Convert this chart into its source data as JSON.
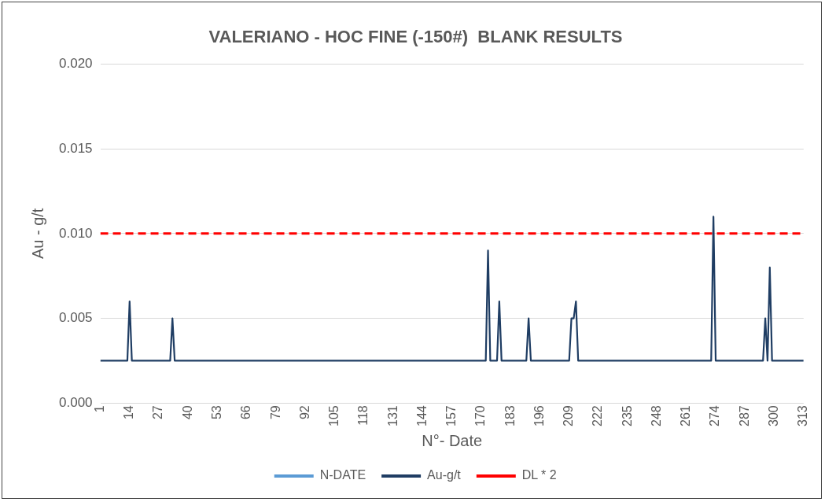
{
  "chart_data": {
    "type": "line",
    "title": "VALERIANO - HOC FINE (-150#)  BLANK RESULTS",
    "xlabel": "N°- Date",
    "ylabel": "Au - g/t",
    "xlim": [
      1,
      313
    ],
    "xticks": [
      1,
      14,
      27,
      40,
      53,
      66,
      79,
      92,
      105,
      118,
      131,
      144,
      157,
      170,
      183,
      196,
      209,
      222,
      235,
      248,
      261,
      274,
      287,
      300,
      313
    ],
    "ylim": [
      0,
      0.02
    ],
    "yticks": [
      {
        "value": 0,
        "label": "0.000"
      },
      {
        "value": 0.005,
        "label": "0.005"
      },
      {
        "value": 0.01,
        "label": "0.010"
      },
      {
        "value": 0.015,
        "label": "0.015"
      },
      {
        "value": 0.02,
        "label": "0.020"
      }
    ],
    "grid": "y",
    "legend": "bottom",
    "marker": "none",
    "series": [
      {
        "name": "N-DATE",
        "color": "#5b9bd5"
      },
      {
        "name": "Au-g/t",
        "color": "#1f3d63",
        "x": [
          1,
          13,
          14,
          15,
          32,
          33,
          34,
          172,
          173,
          174,
          177,
          178,
          179,
          190,
          191,
          192,
          209,
          210,
          211,
          212,
          213,
          272,
          273,
          274,
          295,
          296,
          297,
          298,
          299,
          313
        ],
        "values": [
          0.0025,
          0.0025,
          0.006,
          0.0025,
          0.0025,
          0.005,
          0.0025,
          0.0025,
          0.009,
          0.0025,
          0.0025,
          0.006,
          0.0025,
          0.0025,
          0.005,
          0.0025,
          0.0025,
          0.005,
          0.005,
          0.006,
          0.0025,
          0.0025,
          0.011,
          0.0025,
          0.0025,
          0.005,
          0.0025,
          0.008,
          0.0025,
          0.0025
        ]
      }
    ],
    "ref_lines": [
      {
        "axis": "y",
        "value": 0.01,
        "label": "DL * 2",
        "color": "#ff0000",
        "line_style": "dashed"
      }
    ]
  }
}
